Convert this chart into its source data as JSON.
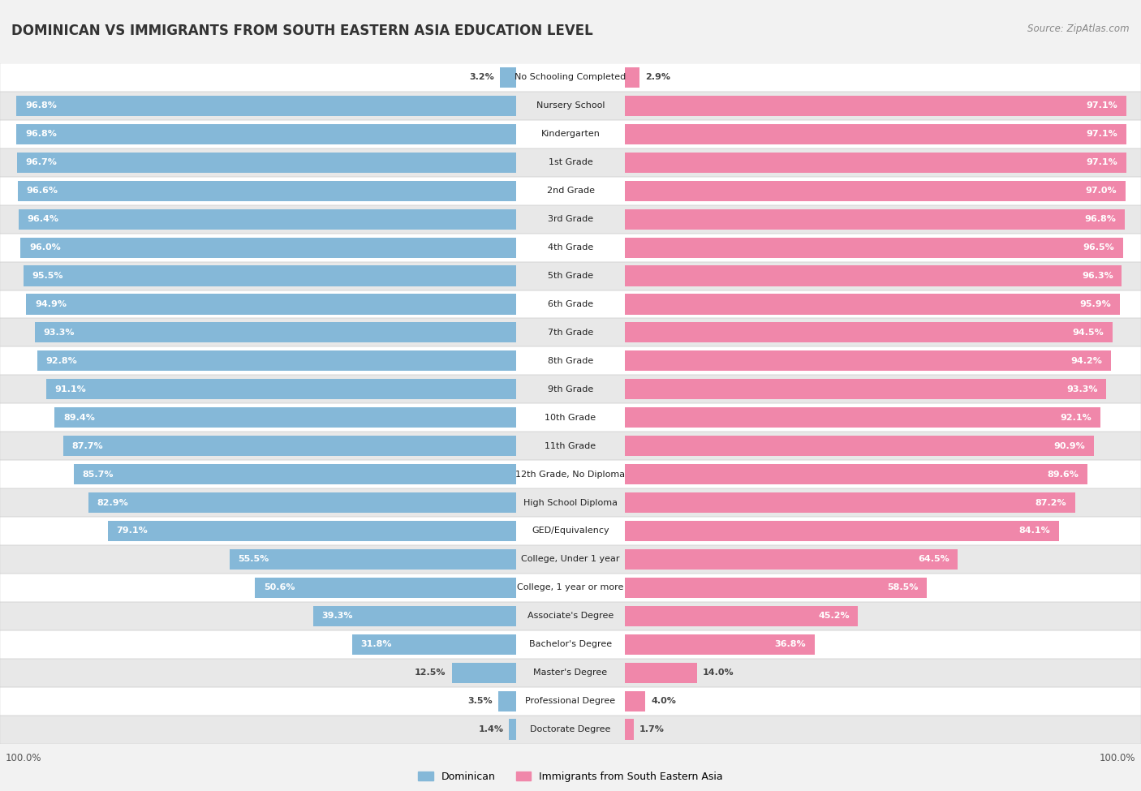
{
  "title": "DOMINICAN VS IMMIGRANTS FROM SOUTH EASTERN ASIA EDUCATION LEVEL",
  "source": "Source: ZipAtlas.com",
  "categories": [
    "No Schooling Completed",
    "Nursery School",
    "Kindergarten",
    "1st Grade",
    "2nd Grade",
    "3rd Grade",
    "4th Grade",
    "5th Grade",
    "6th Grade",
    "7th Grade",
    "8th Grade",
    "9th Grade",
    "10th Grade",
    "11th Grade",
    "12th Grade, No Diploma",
    "High School Diploma",
    "GED/Equivalency",
    "College, Under 1 year",
    "College, 1 year or more",
    "Associate's Degree",
    "Bachelor's Degree",
    "Master's Degree",
    "Professional Degree",
    "Doctorate Degree"
  ],
  "dominican": [
    3.2,
    96.8,
    96.8,
    96.7,
    96.6,
    96.4,
    96.0,
    95.5,
    94.9,
    93.3,
    92.8,
    91.1,
    89.4,
    87.7,
    85.7,
    82.9,
    79.1,
    55.5,
    50.6,
    39.3,
    31.8,
    12.5,
    3.5,
    1.4
  ],
  "immigrants": [
    2.9,
    97.1,
    97.1,
    97.1,
    97.0,
    96.8,
    96.5,
    96.3,
    95.9,
    94.5,
    94.2,
    93.3,
    92.1,
    90.9,
    89.6,
    87.2,
    84.1,
    64.5,
    58.5,
    45.2,
    36.8,
    14.0,
    4.0,
    1.7
  ],
  "dominican_color": "#85b8d8",
  "immigrant_color": "#f087aa",
  "background_color": "#f2f2f2",
  "row_even_color": "#ffffff",
  "row_odd_color": "#e8e8e8",
  "title_fontsize": 12,
  "label_fontsize": 8,
  "value_fontsize": 8
}
